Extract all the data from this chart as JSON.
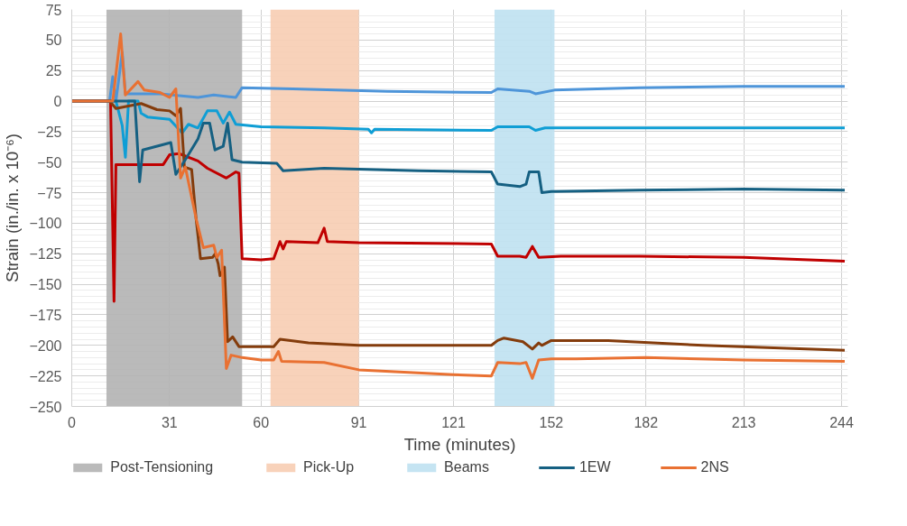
{
  "chart_data": {
    "type": "line",
    "xlabel": "Time (minutes)",
    "ylabel": "Strain (in./in. x 10⁻⁶)",
    "xlim": [
      0,
      246
    ],
    "xticks": [
      0,
      31,
      60,
      91,
      121,
      152,
      182,
      213,
      244
    ],
    "ylim": [
      -250,
      75
    ],
    "yticks": [
      -250,
      -225,
      -200,
      -175,
      -150,
      -125,
      -100,
      -75,
      -50,
      -25,
      0,
      25,
      50,
      75
    ],
    "grid": true,
    "legend": "bottom",
    "line_style": "solid",
    "marker": "none",
    "bands": [
      {
        "axis": "x",
        "from": 11,
        "to": 54,
        "label": "Post-Tensioning",
        "color": "#b3b3b3"
      },
      {
        "axis": "x",
        "from": 63,
        "to": 91,
        "label": "Pick-Up",
        "color": "#f7cdb3"
      },
      {
        "axis": "x",
        "from": 134,
        "to": 153,
        "label": "Beams",
        "color": "#bfe1f1"
      }
    ],
    "series": [
      {
        "color": "#4e95d9",
        "x": [
          0,
          12,
          13,
          14,
          16,
          17,
          28,
          40,
          45,
          52,
          54,
          70,
          100,
          133,
          135,
          145,
          147,
          153,
          180,
          213,
          245
        ],
        "values": [
          0,
          0,
          20,
          0,
          40,
          6,
          6,
          3,
          5,
          3,
          11,
          10,
          8,
          7,
          10,
          8,
          6,
          9,
          11,
          12,
          12
        ]
      },
      {
        "color": "#0f9ed5",
        "x": [
          0,
          14,
          16,
          17,
          18,
          21,
          22,
          24,
          31,
          35,
          37,
          40,
          43,
          46,
          48,
          50,
          52,
          60,
          80,
          94,
          95,
          96,
          133,
          135,
          145,
          147,
          150,
          245
        ],
        "values": [
          0,
          0,
          -20,
          -46,
          0,
          0,
          -10,
          -13,
          -15,
          -26,
          -19,
          -22,
          -8,
          -8,
          -18,
          -9,
          -19,
          -21,
          -22,
          -23,
          -26,
          -23,
          -24,
          -21,
          -21,
          -24,
          -22,
          -22
        ]
      },
      {
        "color": "#c00000",
        "x": [
          0,
          12.3,
          13.4,
          14,
          29,
          31,
          34,
          40,
          43,
          49,
          52,
          53,
          54,
          60,
          64,
          66,
          67,
          68,
          78,
          80,
          81,
          91,
          133,
          135,
          142,
          144,
          146,
          148,
          155,
          180,
          213,
          245
        ],
        "values": [
          0,
          0,
          -164,
          -52,
          -52,
          -44,
          -43,
          -49,
          -55,
          -63,
          -58,
          -59,
          -129,
          -130,
          -129,
          -115,
          -121,
          -115,
          -116,
          -104,
          -115,
          -116,
          -117,
          -127,
          -127,
          -128,
          -119,
          -128,
          -127,
          -127,
          -128,
          -131
        ]
      },
      {
        "color": "#843c0c",
        "x": [
          0,
          12,
          14,
          22,
          27,
          31,
          33,
          34.5,
          35.7,
          38,
          39.4,
          40.8,
          44.6,
          45.5,
          46.4,
          47,
          48.4,
          49.4,
          51,
          53,
          60,
          64,
          66,
          75,
          91,
          133,
          135,
          137,
          143,
          146,
          148,
          149,
          152,
          170,
          200,
          245
        ],
        "values": [
          0,
          0,
          -6,
          -2,
          -7,
          -8,
          -12,
          -6,
          -54,
          -56,
          -96,
          -129,
          -128,
          -125,
          -133,
          -143,
          -136,
          -197,
          -193,
          -201,
          -201,
          -201,
          -195,
          -198,
          -200,
          -200,
          -196,
          -194,
          -197,
          -203,
          -198,
          -200,
          -196,
          -196,
          -200,
          -204
        ]
      },
      {
        "name": "1EW",
        "color": "#156082",
        "x": [
          0,
          20,
          21.5,
          22.5,
          31.4,
          33,
          36,
          40,
          41.7,
          43.7,
          45.4,
          48,
          49.4,
          50.8,
          54,
          65,
          67,
          80,
          110,
          133,
          135,
          142,
          144,
          145,
          148,
          149,
          152,
          180,
          213,
          245
        ],
        "values": [
          0,
          0,
          -66,
          -40,
          -34,
          -60,
          -48,
          -31,
          -18,
          -18,
          -40,
          -37,
          -18,
          -48,
          -50,
          -51,
          -57,
          -55,
          -57,
          -58,
          -68,
          -70,
          -68,
          -58,
          -58,
          -75,
          -74,
          -73,
          -72,
          -73
        ]
      },
      {
        "name": "2NS",
        "color": "#e97132",
        "x": [
          0,
          13,
          15.5,
          17,
          21,
          23,
          28,
          31,
          33,
          34.5,
          36,
          39.4,
          41.7,
          45,
          46,
          47.5,
          49,
          50.5,
          54,
          60,
          64,
          65.5,
          66.5,
          80,
          91,
          121,
          133,
          135,
          142,
          144,
          146,
          148,
          152,
          160,
          182,
          213,
          245
        ],
        "values": [
          0,
          0,
          55,
          5,
          16,
          9,
          7,
          3,
          10,
          -63,
          -54,
          -96,
          -120,
          -118,
          -128,
          -122,
          -219,
          -208,
          -210,
          -212,
          -212,
          -205,
          -213,
          -214,
          -220,
          -224,
          -225,
          -214,
          -215,
          -214,
          -227,
          -212,
          -211,
          -211,
          -210,
          -212,
          -213
        ]
      }
    ]
  }
}
